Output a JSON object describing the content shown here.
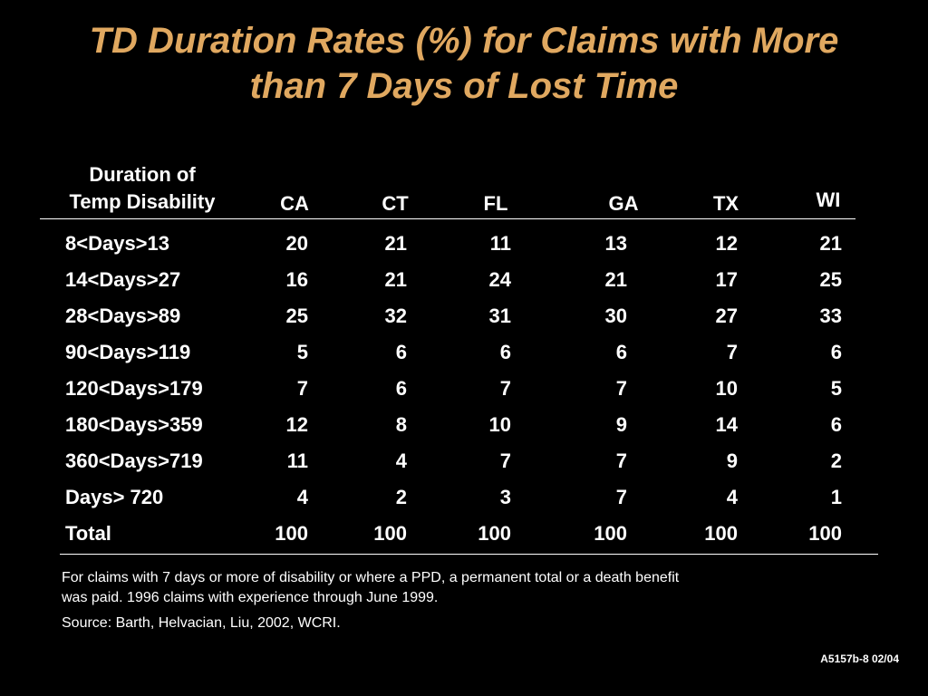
{
  "title_lines": [
    "TD Duration Rates (%) for Claims with More",
    "than 7 Days of Lost Time"
  ],
  "colors": {
    "background": "#000000",
    "title": "#e0a860",
    "text": "#ffffff"
  },
  "chart_data": {
    "type": "table",
    "title": "TD Duration Rates (%) for Claims with More than 7 Days of Lost Time",
    "row_header_lines": [
      "Duration of",
      "Temp Disability"
    ],
    "columns": [
      "CA",
      "CT",
      "FL",
      "GA",
      "TX",
      "WI"
    ],
    "rows": [
      {
        "label": "8<Days>13",
        "values": [
          20,
          21,
          11,
          13,
          12,
          21
        ]
      },
      {
        "label": "14<Days>27",
        "values": [
          16,
          21,
          24,
          21,
          17,
          25
        ]
      },
      {
        "label": "28<Days>89",
        "values": [
          25,
          32,
          31,
          30,
          27,
          33
        ]
      },
      {
        "label": "90<Days>119",
        "values": [
          5,
          6,
          6,
          6,
          7,
          6
        ]
      },
      {
        "label": "120<Days>179",
        "values": [
          7,
          6,
          7,
          7,
          10,
          5
        ]
      },
      {
        "label": "180<Days>359",
        "values": [
          12,
          8,
          10,
          9,
          14,
          6
        ]
      },
      {
        "label": "360<Days>719",
        "values": [
          11,
          4,
          7,
          7,
          9,
          2
        ]
      },
      {
        "label": "Days> 720",
        "values": [
          4,
          2,
          3,
          7,
          4,
          1
        ]
      },
      {
        "label": "Total",
        "values": [
          100,
          100,
          100,
          100,
          100,
          100
        ]
      }
    ]
  },
  "footnotes": {
    "note_lines": [
      "For claims with 7 days or more of disability or where a PPD, a permanent total or a death benefit",
      "was paid.  1996 claims with experience through June 1999."
    ],
    "source": "Source: Barth, Helvacian, Liu, 2002, WCRI."
  },
  "slide_id": "A5157b-8  02/04"
}
